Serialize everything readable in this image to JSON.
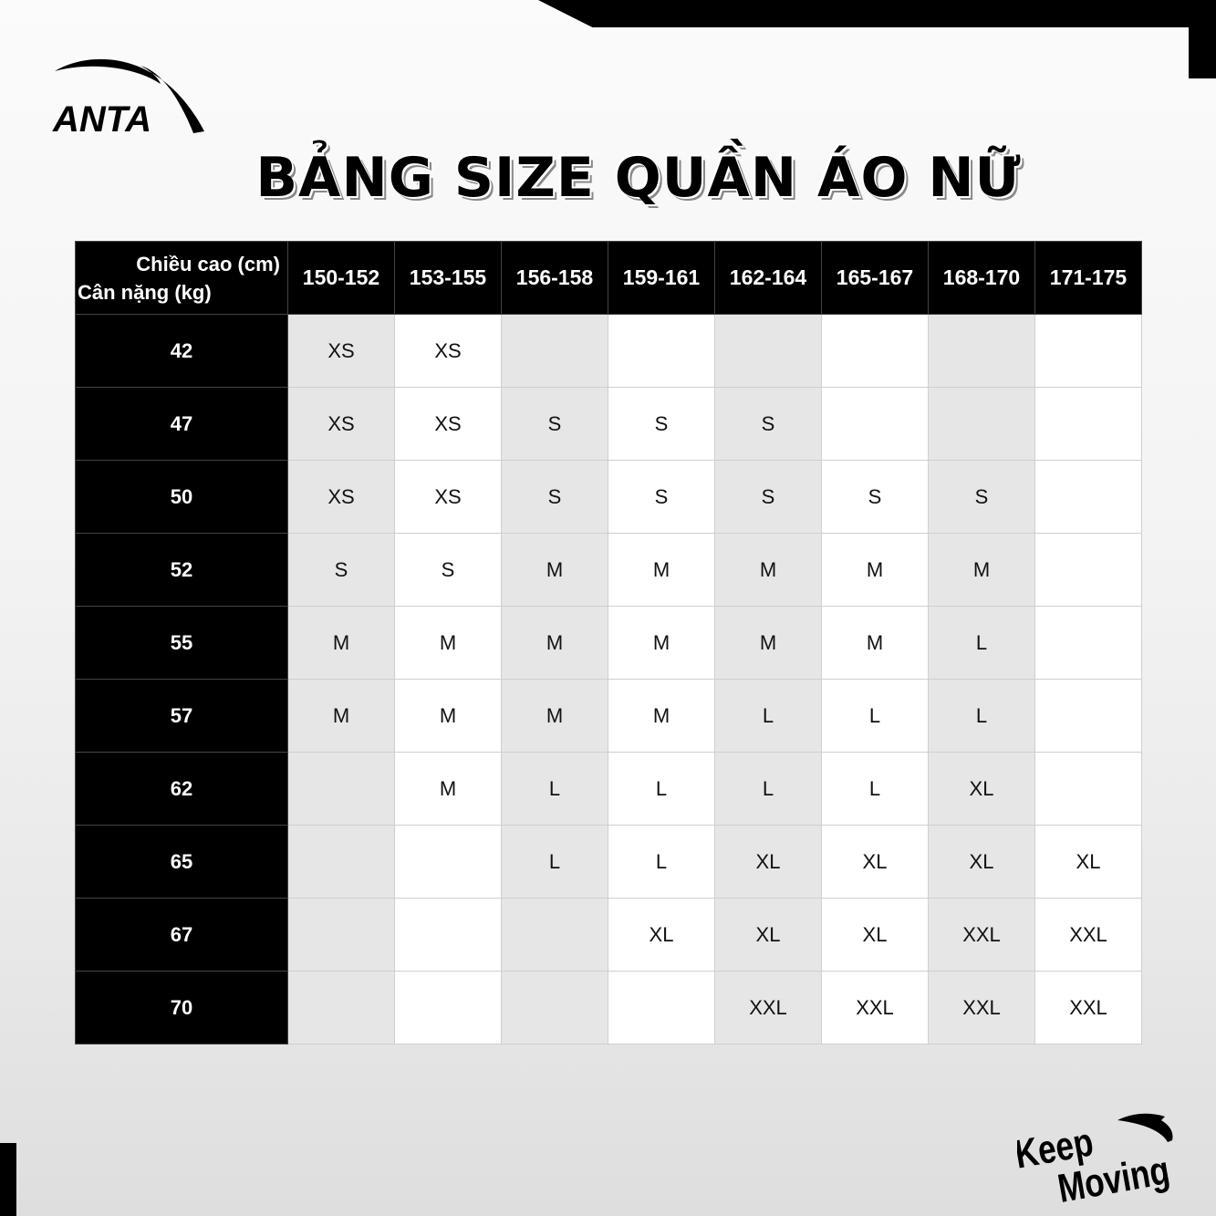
{
  "brand": {
    "logo_text": "ANTA",
    "slogan": "Keep Moving"
  },
  "title": "BẢNG SIZE QUẦN ÁO NỮ",
  "table": {
    "corner_height_label": "Chiều cao (cm)",
    "corner_weight_label": "Cân nặng (kg)",
    "columns": [
      "150-152",
      "153-155",
      "156-158",
      "159-161",
      "162-164",
      "165-167",
      "168-170",
      "171-175"
    ],
    "rows": [
      {
        "weight": "42",
        "sizes": [
          "XS",
          "XS",
          "",
          "",
          "",
          "",
          "",
          ""
        ]
      },
      {
        "weight": "47",
        "sizes": [
          "XS",
          "XS",
          "S",
          "S",
          "S",
          "",
          "",
          ""
        ]
      },
      {
        "weight": "50",
        "sizes": [
          "XS",
          "XS",
          "S",
          "S",
          "S",
          "S",
          "S",
          ""
        ]
      },
      {
        "weight": "52",
        "sizes": [
          "S",
          "S",
          "M",
          "M",
          "M",
          "M",
          "M",
          ""
        ]
      },
      {
        "weight": "55",
        "sizes": [
          "M",
          "M",
          "M",
          "M",
          "M",
          "M",
          "L",
          ""
        ]
      },
      {
        "weight": "57",
        "sizes": [
          "M",
          "M",
          "M",
          "M",
          "L",
          "L",
          "L",
          ""
        ]
      },
      {
        "weight": "62",
        "sizes": [
          "",
          "M",
          "L",
          "L",
          "L",
          "L",
          "XL",
          ""
        ]
      },
      {
        "weight": "65",
        "sizes": [
          "",
          "",
          "L",
          "L",
          "XL",
          "XL",
          "XL",
          "XL"
        ]
      },
      {
        "weight": "67",
        "sizes": [
          "",
          "",
          "",
          "XL",
          "XL",
          "XL",
          "XXL",
          "XXL"
        ]
      },
      {
        "weight": "70",
        "sizes": [
          "",
          "",
          "",
          "",
          "XXL",
          "XXL",
          "XXL",
          "XXL"
        ]
      }
    ]
  },
  "colors": {
    "header_bg": "#000000",
    "shaded_column": "#e6e6e6",
    "plain_column": "#ffffff"
  }
}
